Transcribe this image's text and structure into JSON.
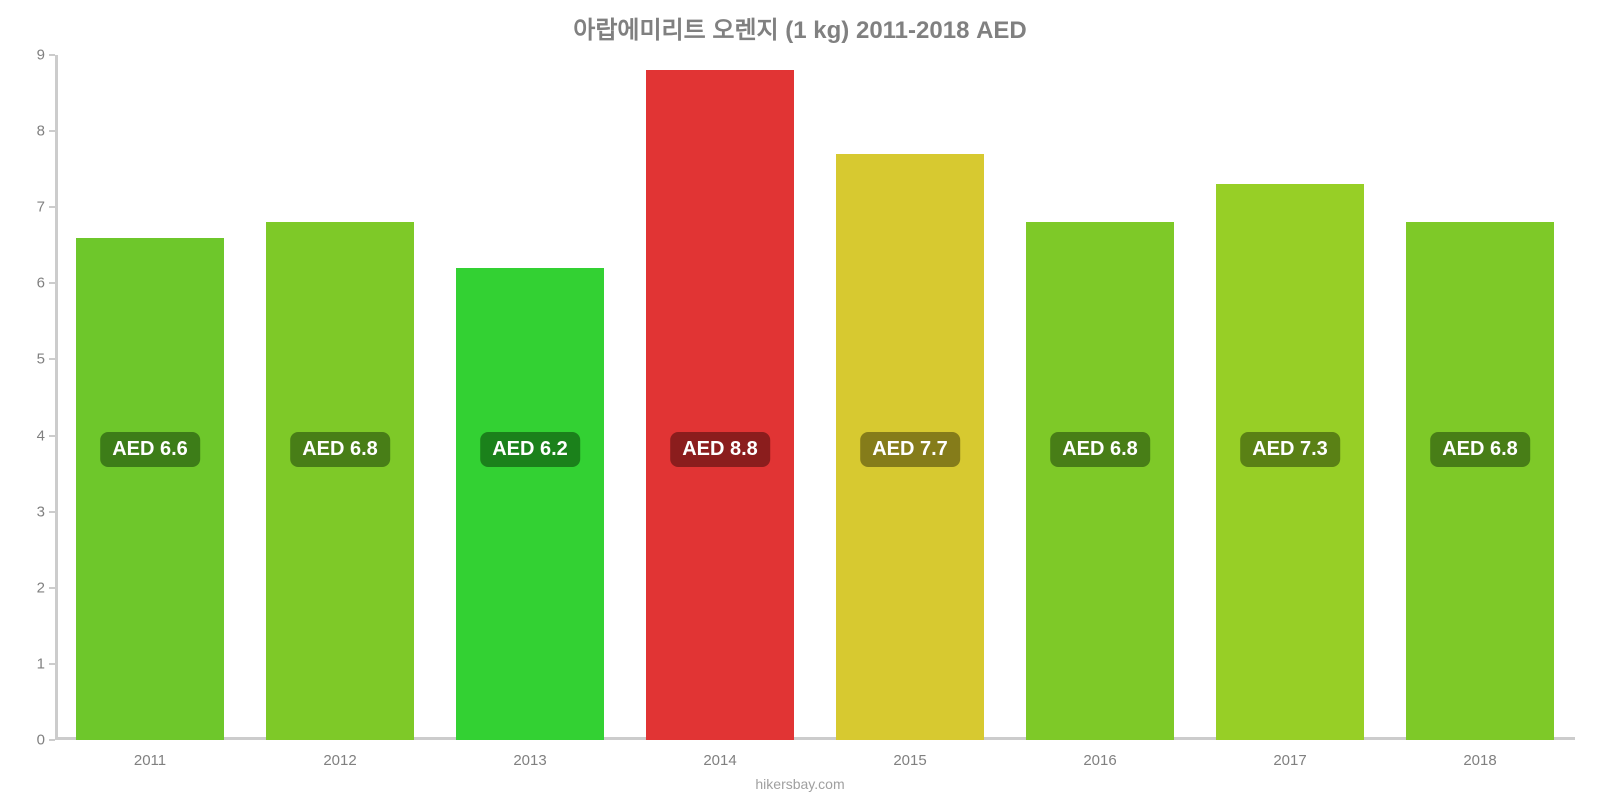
{
  "chart": {
    "type": "bar",
    "title": "아랍에미리트 오렌지 (1 kg) 2011-2018 AED",
    "title_fontsize": 24,
    "title_color": "#808080",
    "source": "hikersbay.com",
    "source_fontsize": 14,
    "source_color": "#a0a0a0",
    "background_color": "#ffffff",
    "axis_color": "#cccccc",
    "tick_label_color": "#808080",
    "tick_fontsize": 15,
    "ylim": [
      0,
      9
    ],
    "ytick_step": 1,
    "categories": [
      "2011",
      "2012",
      "2013",
      "2014",
      "2015",
      "2016",
      "2017",
      "2018"
    ],
    "values": [
      6.6,
      6.8,
      6.2,
      8.8,
      7.7,
      6.8,
      7.3,
      6.8
    ],
    "value_labels": [
      "AED 6.6",
      "AED 6.8",
      "AED 6.2",
      "AED 8.8",
      "AED 7.7",
      "AED 6.8",
      "AED 7.3",
      "AED 6.8"
    ],
    "bar_colors": [
      "#6ec72b",
      "#7ec928",
      "#33d133",
      "#e13434",
      "#d7c930",
      "#7ec928",
      "#97cf26",
      "#7ec928"
    ],
    "label_bg_colors": [
      "#3d7d18",
      "#487e17",
      "#1b811b",
      "#8b1d1d",
      "#857c1a",
      "#487e17",
      "#5a8115",
      "#487e17"
    ],
    "label_text_color": "#ffffff",
    "label_fontsize": 20,
    "label_radius": 8,
    "bar_width_ratio": 0.78,
    "label_center_value": 3.8
  }
}
